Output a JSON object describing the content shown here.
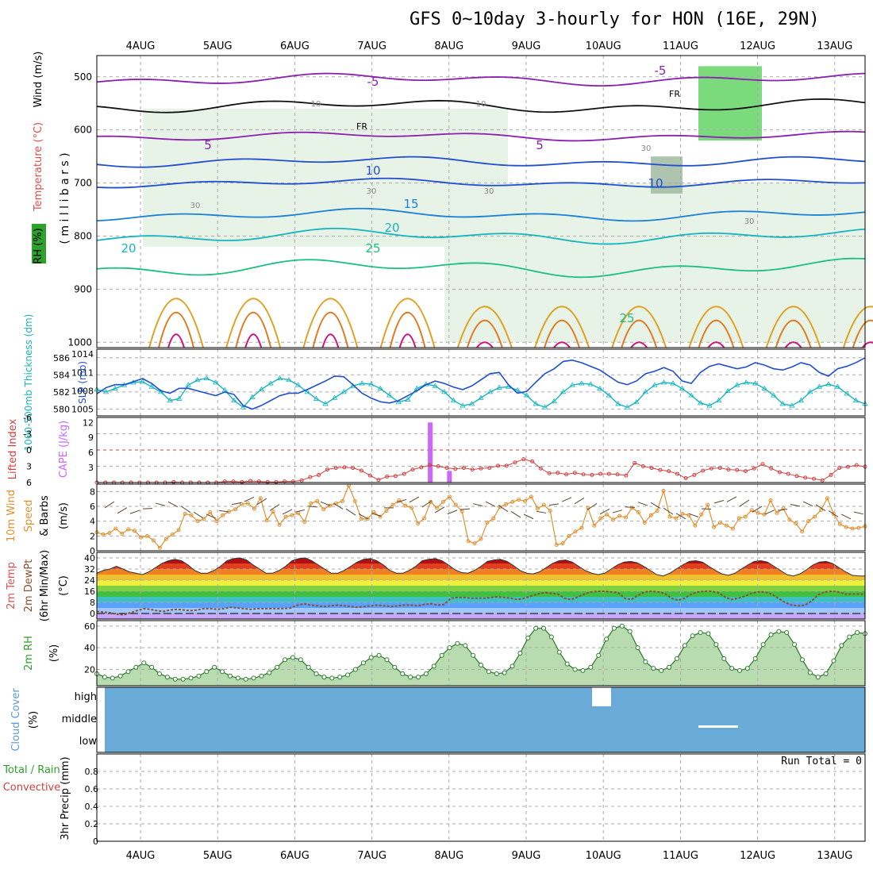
{
  "title": "GFS 0~10day 3-hourly for HON (16E, 29N)",
  "run_total": "Run Total = 0",
  "colors": {
    "purple": "#8a1fb0",
    "blue": "#1f4fd0",
    "teal": "#15b5bf",
    "green": "#1bbf80",
    "gold": "#e0a020",
    "orange": "#e07a20",
    "magenta": "#d01080",
    "pink": "#cc66ff",
    "red": "#d04040",
    "rh_green": "#2ea02e",
    "cloud": "#6aaad6",
    "wind_orange": "#e09030"
  },
  "chart_data": {
    "type": "line",
    "x_labels": [
      "4AUG",
      "5AUG",
      "6AUG",
      "7AUG",
      "8AUG",
      "9AUG",
      "10AUG",
      "11AUG",
      "12AUG",
      "13AUG"
    ],
    "panels": {
      "upper": {
        "ylabel_parts": [
          "RH (%)",
          "Temperature (°C)",
          "Wind (m/s)"
        ],
        "ylabel2": "( m i l l i b a r s )",
        "yticks": [
          "500",
          "600",
          "700",
          "800",
          "900",
          "1000"
        ],
        "ylim": [
          460,
          1010
        ],
        "temp_labels": [
          "-5",
          "-5",
          "5",
          "5",
          "10",
          "10",
          "15",
          "20",
          "20",
          "25",
          "25"
        ],
        "rh_labels": [
          "10",
          "10",
          "30",
          "30",
          "30",
          "30",
          "30"
        ],
        "freezing_labels": [
          "FR",
          "FR"
        ]
      },
      "thickness": {
        "ylabel_left": "1000-500mb Thickness (dm)",
        "ylabel_right": "SLP (mb)",
        "yticks_left": [
          "586",
          "584",
          "582",
          "580"
        ],
        "yticks_right": [
          "1014",
          "1011",
          "1008",
          "1005"
        ],
        "thickness": [
          582.3,
          582.0,
          582.4,
          582.8,
          583.1,
          583.2,
          582.6,
          582.0,
          581.0,
          581.2,
          582.8,
          583.4,
          583.6,
          583.1,
          582.2,
          581.0,
          580.2,
          581.4,
          582.3,
          583.0,
          583.6,
          583.4,
          582.8,
          582.0,
          581.2,
          580.6,
          581.3,
          582.0,
          582.7,
          583.0,
          582.9,
          582.4,
          581.6,
          580.8,
          581.1,
          582.4,
          582.9,
          582.7,
          582.0,
          581.0,
          580.4,
          580.6,
          581.3,
          582.0,
          582.5,
          582.6,
          582.2,
          581.6,
          580.6,
          580.2,
          580.9,
          582.0,
          582.8,
          583.0,
          582.9,
          582.4,
          581.6,
          580.6,
          580.2,
          580.8,
          582.0,
          582.8,
          583.1,
          583.0,
          582.4,
          581.6,
          580.7,
          580.4,
          581.0,
          582.1,
          582.8,
          583.1,
          583.0,
          582.4,
          581.6,
          580.6,
          580.4,
          581.0,
          582.0,
          582.6,
          582.9,
          582.6,
          581.8,
          581.0,
          580.6
        ],
        "slp": [
          1007.5,
          1008.5,
          1009.0,
          1009.0,
          1009.5,
          1010.0,
          1009.2,
          1008.0,
          1007.6,
          1008.4,
          1008.4,
          1008.0,
          1007.6,
          1007.2,
          1007.8,
          1007.4,
          1005.6,
          1005.0,
          1005.6,
          1006.4,
          1007.2,
          1007.6,
          1007.6,
          1008.2,
          1008.9,
          1009.6,
          1010.4,
          1010.3,
          1009.0,
          1007.6,
          1006.8,
          1006.2,
          1006.0,
          1006.4,
          1007.2,
          1008.0,
          1009.0,
          1009.6,
          1009.2,
          1008.6,
          1008.2,
          1008.8,
          1009.8,
          1010.8,
          1011.0,
          1009.0,
          1007.6,
          1007.9,
          1009.4,
          1010.8,
          1011.6,
          1012.8,
          1013.0,
          1012.6,
          1012.0,
          1011.4,
          1010.4,
          1009.4,
          1009.0,
          1009.6,
          1010.8,
          1011.2,
          1011.8,
          1011.2,
          1009.6,
          1009.2,
          1011.0,
          1012.0,
          1012.4,
          1012.0,
          1011.6,
          1011.9,
          1012.6,
          1012.2,
          1011.6,
          1011.4,
          1011.9,
          1012.6,
          1012.2,
          1011.0,
          1010.4,
          1011.6,
          1012.0,
          1012.6,
          1013.4
        ]
      },
      "lifted": {
        "ylabel_left": "Lifted Index",
        "ylabel_right": "CAPE (J/kg)",
        "yticks_left": [
          "-6",
          "-3",
          "0",
          "3",
          "6"
        ],
        "yticks_right": [
          "12",
          "9",
          "6",
          "3"
        ],
        "cape_bars": [
          {
            "x": 43.4,
            "value": 12
          },
          {
            "x": 45.9,
            "value": 2.3
          }
        ],
        "lifted_index": [
          6.2,
          6.2,
          6.2,
          6.1,
          6.2,
          6.0,
          6.1,
          6.2,
          6.0,
          5.9,
          6.2,
          6.0,
          6.1,
          6.2,
          6.0,
          5.8,
          5.8,
          5.9,
          5.7,
          5.8,
          5.9,
          5.9,
          5.8,
          5.8,
          5.6,
          5.0,
          4.6,
          3.6,
          3.3,
          3.2,
          3.3,
          3.8,
          4.7,
          5.5,
          4.9,
          4.8,
          4.4,
          3.6,
          3.2,
          2.8,
          3.0,
          3.3,
          3.5,
          3.3,
          3.6,
          3.4,
          3.3,
          2.9,
          2.9,
          2.3,
          1.7,
          2.1,
          3.4,
          4.3,
          4.2,
          4.5,
          4.2,
          4.5,
          4.6,
          4.4,
          4.4,
          4.5,
          4.7,
          2.4,
          3.0,
          3.3,
          3.7,
          3.9,
          4.4,
          5.2,
          4.6,
          3.8,
          3.4,
          3.3,
          3.6,
          3.7,
          3.9,
          3.4,
          2.6,
          3.4,
          4.1,
          4.4,
          4.8,
          5.1,
          5.3,
          5.6,
          4.6,
          3.3,
          3.1,
          2.8,
          3.1
        ]
      },
      "wind10m": {
        "ylabel_parts": [
          "10m Wind",
          "Speed",
          "& Barbs"
        ],
        "yunit": "(m/s)",
        "yticks": [
          "8",
          "6",
          "4",
          "2",
          "0"
        ],
        "speed": [
          2.5,
          2.2,
          2.4,
          3.0,
          2.3,
          2.9,
          2.7,
          1.8,
          2.0,
          1.4,
          0.4,
          1.6,
          2.2,
          2.8,
          5.0,
          4.8,
          4.0,
          4.3,
          5.2,
          4.0,
          4.8,
          5.3,
          5.6,
          6.3,
          6.4,
          5.7,
          7.1,
          4.1,
          5.3,
          3.5,
          4.6,
          4.8,
          5.1,
          3.9,
          6.4,
          6.7,
          5.6,
          6.1,
          6.4,
          6.7,
          8.8,
          6.7,
          4.3,
          4.3,
          5.2,
          4.6,
          5.4,
          6.2,
          6.8,
          6.1,
          5.8,
          3.7,
          4.4,
          6.6,
          5.8,
          6.6,
          7.3,
          6.2,
          5.3,
          1.3,
          1.0,
          1.6,
          3.8,
          4.4,
          5.9,
          6.3,
          6.6,
          6.9,
          6.7,
          7.3,
          5.7,
          6.2,
          5.4,
          0.8,
          1.0,
          2.0,
          2.6,
          3.1,
          5.8,
          3.4,
          4.4,
          4.9,
          4.2,
          4.7,
          4.5,
          5.8,
          5.2,
          3.8,
          4.8,
          5.4,
          8.1,
          4.6,
          4.4,
          5.0,
          4.8,
          3.4,
          4.9,
          6.2,
          3.2,
          3.8,
          3.4,
          3.0,
          4.4,
          4.6,
          5.5,
          5.1,
          4.9,
          6.8,
          5.1,
          5.7,
          4.2,
          3.7,
          2.6,
          4.0,
          4.6,
          5.5,
          7.1,
          5.0,
          3.6,
          3.2,
          3.0,
          3.1,
          3.3
        ]
      },
      "temp2m": {
        "ylabel_parts": [
          "2m Temp",
          "2m DewPt",
          "(6hr Min/Max)"
        ],
        "yunit": "(°C)",
        "yticks": [
          "40",
          "32",
          "24",
          "16",
          "8",
          "0"
        ],
        "temperature": [
          29.0,
          31.0,
          32.0,
          34.0,
          32.0,
          30.0,
          29.0,
          28.0,
          30.0,
          33.0,
          36.0,
          38.0,
          39.0,
          38.0,
          35.0,
          31.0,
          29.0,
          29.0,
          31.0,
          34.0,
          38.0,
          39.5,
          40.0,
          38.5,
          35.0,
          32.0,
          29.0,
          29.0,
          31.0,
          34.0,
          38.0,
          39.5,
          40.0,
          38.0,
          35.0,
          32.0,
          29.0,
          29.0,
          31.0,
          34.0,
          37.0,
          39.0,
          39.5,
          38.0,
          35.0,
          31.0,
          29.0,
          29.0,
          31.0,
          34.0,
          38.0,
          39.0,
          39.5,
          38.0,
          35.0,
          31.5,
          29.5,
          29.0,
          31.0,
          34.0,
          37.5,
          38.5,
          39.0,
          37.5,
          34.5,
          31.0,
          29.0,
          28.5,
          30.0,
          33.0,
          36.0,
          38.0,
          38.5,
          37.0,
          34.0,
          31.0,
          29.0,
          28.0,
          29.0,
          32.0,
          35.0,
          37.0,
          37.5,
          36.5,
          34.0,
          31.0,
          28.0,
          27.0,
          29.0,
          32.0,
          35.0,
          37.5,
          38.0,
          37.0,
          34.0,
          31.0,
          28.5,
          27.5,
          29.0,
          32.0,
          35.0,
          37.5,
          38.0,
          37.0,
          34.0,
          31.0,
          28.0,
          27.0,
          28.5,
          31.5,
          35.0,
          37.0,
          37.5,
          36.0,
          33.0,
          30.0,
          27.5,
          27.0,
          27.0
        ],
        "dewpoint": [
          1.5,
          1.0,
          0.5,
          -0.5,
          -1.0,
          0.5,
          2.0,
          3.5,
          3.0,
          2.0,
          1.5,
          2.5,
          3.0,
          2.5,
          2.0,
          2.5,
          3.5,
          3.5,
          3.0,
          3.5,
          4.5,
          4.0,
          3.5,
          3.0,
          3.5,
          3.5,
          3.5,
          3.5,
          3.5,
          4.0,
          6.0,
          7.0,
          6.0,
          5.5,
          5.0,
          5.5,
          6.0,
          5.5,
          5.0,
          4.5,
          5.0,
          5.5,
          6.0,
          5.5,
          5.0,
          5.5,
          6.0,
          6.0,
          5.5,
          6.5,
          7.0,
          6.0,
          6.5,
          11.0,
          11.5,
          11.5,
          11.0,
          11.0,
          11.0,
          11.5,
          12.0,
          11.5,
          11.0,
          10.0,
          11.0,
          12.5,
          14.0,
          15.0,
          14.5,
          14.0,
          11.0,
          10.0,
          12.0,
          14.0,
          15.5,
          16.0,
          16.0,
          15.5,
          15.0,
          11.0,
          10.0,
          13.0,
          15.5,
          16.0,
          15.5,
          14.5,
          11.0,
          9.5,
          11.0,
          14.0,
          15.5,
          16.0,
          16.0,
          15.0,
          12.0,
          10.0,
          11.0,
          12.5,
          14.5,
          15.5,
          15.5,
          14.0,
          11.0,
          8.0,
          6.0,
          5.5,
          6.0,
          9.0,
          13.5,
          15.5,
          16.0,
          15.5,
          14.0,
          14.0,
          14.0,
          14.0
        ]
      },
      "rh2m": {
        "ylabel_left": "2m RH",
        "yunit": "(%)",
        "yticks": [
          "60",
          "40",
          "20"
        ],
        "rh": [
          16.0,
          13.0,
          12.0,
          14.0,
          18.0,
          22.0,
          26.0,
          22.0,
          16.0,
          13.0,
          11.0,
          11.0,
          12.0,
          14.0,
          18.0,
          22.0,
          18.0,
          14.0,
          12.0,
          11.0,
          12.0,
          14.0,
          17.0,
          22.0,
          29.0,
          31.0,
          29.0,
          22.0,
          16.0,
          13.0,
          12.0,
          13.0,
          15.0,
          20.0,
          26.0,
          31.0,
          33.0,
          29.0,
          22.0,
          16.0,
          13.0,
          13.0,
          16.0,
          23.0,
          33.0,
          40.0,
          44.0,
          42.0,
          33.0,
          24.0,
          18.0,
          16.0,
          17.0,
          23.0,
          35.0,
          49.0,
          58.0,
          58.0,
          50.0,
          36.0,
          25.0,
          20.0,
          19.0,
          22.0,
          33.0,
          48.0,
          58.0,
          60.0,
          55.0,
          40.0,
          27.0,
          21.0,
          19.0,
          22.0,
          30.0,
          42.0,
          51.0,
          54.0,
          53.0,
          43.0,
          30.0,
          21.0,
          19.0,
          21.0,
          30.0,
          43.0,
          52.0,
          55.0,
          54.0,
          43.0,
          29.0,
          17.0,
          13.0,
          16.0,
          28.0,
          42.0,
          50.0,
          54.0,
          53.0
        ]
      },
      "cloud": {
        "ylabel_parts": [
          "Cloud Cover",
          "(%)"
        ],
        "yticks": [
          "high",
          "middle",
          "low"
        ]
      },
      "precip": {
        "ylabel_parts": [
          "Total / Rain",
          "Convective",
          "3hr Precip (mm)"
        ],
        "yticks": [
          "0.8",
          "0.6",
          "0.4",
          "0.2",
          "0"
        ],
        "values": []
      }
    }
  }
}
